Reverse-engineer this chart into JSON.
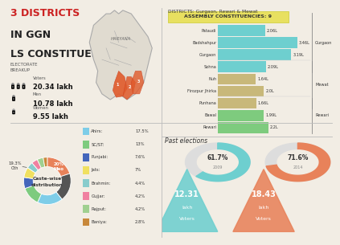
{
  "title_red": "3 DISTRICTS",
  "title_black": " IN GGN\nLS CONSTITUENCY",
  "title_color1": "#cc2222",
  "title_color2": "#222222",
  "bg_color": "#f2ede4",
  "electorate": {
    "voters": "20.34 lakh",
    "men": "10.78 lakh",
    "women": "9.55 lakh"
  },
  "districts_title": "DISTRICTS: Gurgaon, Rewari & Mewat",
  "assembly_label": "ASSEMBLY CONSTITUENCIES: 9",
  "constituencies": [
    {
      "name": "Pataudi",
      "value": 2.06,
      "color": "#6ecfcf",
      "group": "Gurgaon"
    },
    {
      "name": "Badshahpur",
      "value": 3.46,
      "color": "#6ecfcf",
      "group": "Gurgaon"
    },
    {
      "name": "Gurgaon",
      "value": 3.19,
      "color": "#6ecfcf",
      "group": "Gurgaon"
    },
    {
      "name": "Sohna",
      "value": 2.09,
      "color": "#6ecfcf",
      "group": "Gurgaon"
    },
    {
      "name": "Nuh",
      "value": 1.64,
      "color": "#c8b87a",
      "group": "Mewat"
    },
    {
      "name": "Firozpur Jhirka",
      "value": 2.0,
      "color": "#c8b87a",
      "group": "Mewat"
    },
    {
      "name": "Punhana",
      "value": 1.66,
      "color": "#c8b87a",
      "group": "Mewat"
    },
    {
      "name": "Bawal",
      "value": 1.99,
      "color": "#7ecb7e",
      "group": "Rewari"
    },
    {
      "name": "Rewari",
      "value": 2.2,
      "color": "#7ecb7e",
      "group": "Rewari"
    }
  ],
  "caste_labels": [
    "Meo",
    "Oth",
    "Ahirs",
    "SC/ST",
    "Punjabi",
    "Jats",
    "Brahmin",
    "Gujjar",
    "Rajput",
    "Baniya"
  ],
  "caste_values": [
    20.0,
    19.3,
    17.5,
    13.0,
    7.6,
    7.0,
    4.4,
    4.2,
    4.2,
    2.8
  ],
  "caste_colors": [
    "#e8825a",
    "#555555",
    "#7ecde8",
    "#7ecb7e",
    "#4466bb",
    "#f0e060",
    "#88cccc",
    "#f080a0",
    "#a0d090",
    "#c8883a"
  ],
  "caste_legend": [
    {
      "label": "Ahirs:",
      "value": "17.5%",
      "color": "#7ecde8"
    },
    {
      "label": "SC/ST:",
      "value": "13%",
      "color": "#7ecb7e"
    },
    {
      "label": "Punjabi:",
      "value": "7.6%",
      "color": "#4466bb"
    },
    {
      "label": "Jats:",
      "value": "7%",
      "color": "#f0e060"
    },
    {
      "label": "Brahmin:",
      "value": "4.4%",
      "color": "#88cccc"
    },
    {
      "label": "Gujjar:",
      "value": "4.2%",
      "color": "#f080a0"
    },
    {
      "label": "Rajput:",
      "value": "4.2%",
      "color": "#a0d090"
    },
    {
      "label": "Baniya:",
      "value": "2.8%",
      "color": "#c8883a"
    }
  ],
  "past_elections": [
    {
      "year": "2009",
      "voters": "12.31",
      "turnout": 61.7,
      "tri_color": "#6ecfcf",
      "ring_color": "#6ecfcf"
    },
    {
      "year": "2014",
      "voters": "18.43",
      "turnout": 71.6,
      "tri_color": "#e8825a",
      "ring_color": "#e8825a"
    }
  ]
}
